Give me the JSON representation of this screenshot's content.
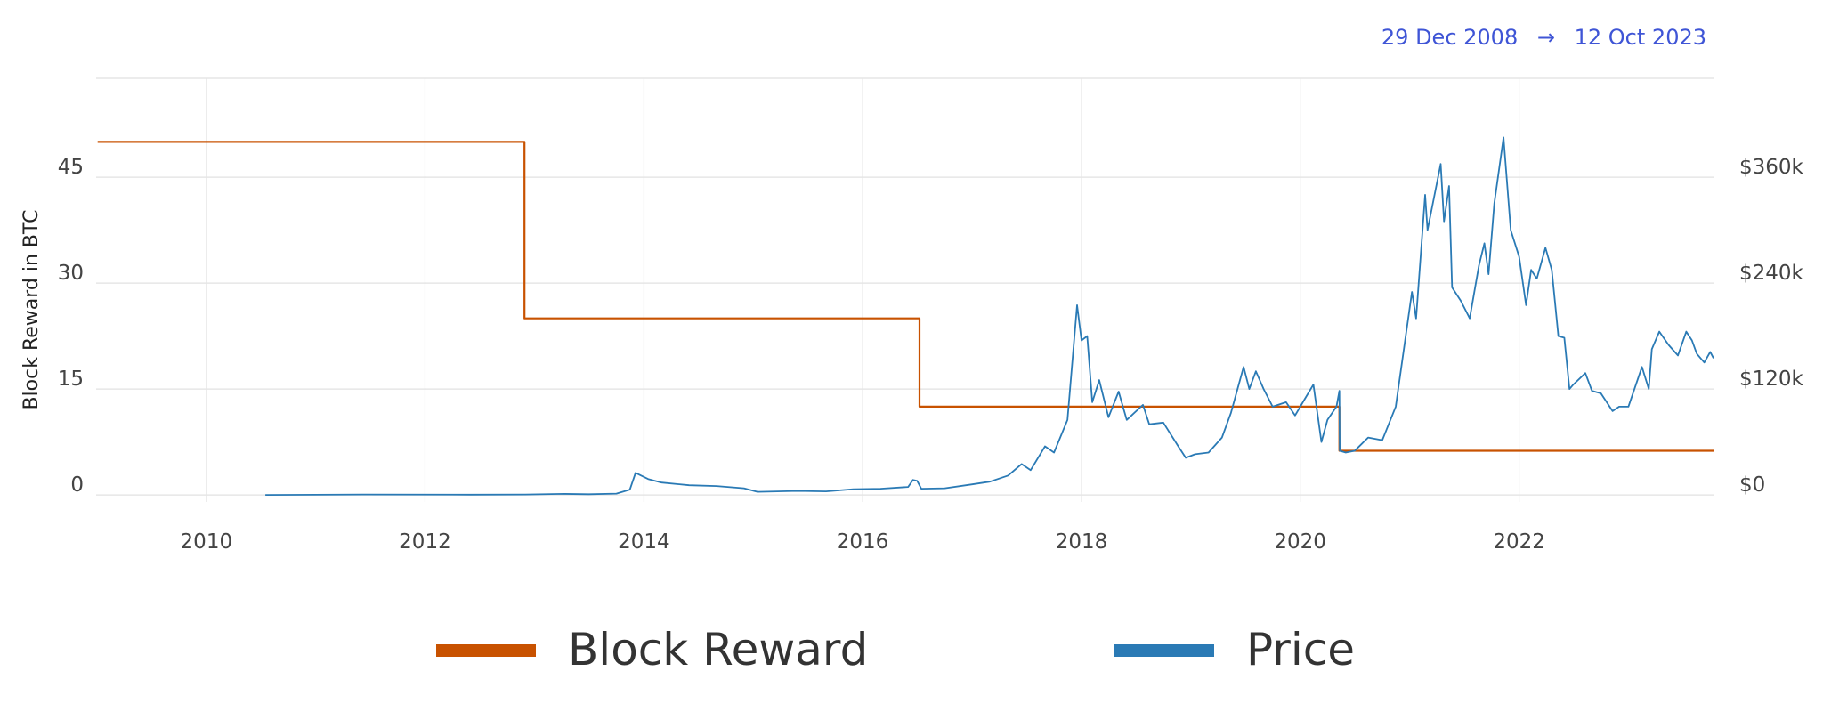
{
  "date_range": {
    "start": "29 Dec 2008",
    "arrow": "→",
    "end": "12 Oct 2023"
  },
  "colors": {
    "block_reward": "#c85200",
    "price": "#2a7ab5",
    "grid": "#e6e6e6",
    "range_text": "#3f55d6"
  },
  "chart_data": {
    "type": "line",
    "xlabel": "",
    "ylabel": "Block Reward in BTC",
    "y2label": "",
    "xlim": [
      "2008-12-29",
      "2023-10-12"
    ],
    "ylim": [
      -1,
      59
    ],
    "y2lim": [
      -8000,
      472000
    ],
    "x_ticks": [
      "2010",
      "2012",
      "2014",
      "2016",
      "2018",
      "2020",
      "2022"
    ],
    "y_ticks": [
      "0",
      "15",
      "30",
      "45"
    ],
    "y2_ticks": [
      "$0",
      "$120k",
      "$240k",
      "$360k"
    ],
    "y_tick_values": [
      0,
      15,
      30,
      45
    ],
    "y2_tick_values": [
      0,
      120000,
      240000,
      360000
    ],
    "grid": true,
    "legend_position": "bottom",
    "series": [
      {
        "name": "Block Reward",
        "axis": "left",
        "step": true,
        "points": [
          [
            "2009-01-03",
            50
          ],
          [
            "2012-11-28",
            50
          ],
          [
            "2012-11-28",
            25
          ],
          [
            "2016-07-09",
            25
          ],
          [
            "2016-07-09",
            12.5
          ],
          [
            "2020-05-11",
            12.5
          ],
          [
            "2020-05-11",
            6.25
          ],
          [
            "2023-10-12",
            6.25
          ]
        ]
      },
      {
        "name": "Price",
        "axis": "right",
        "step": false,
        "points": [
          [
            "2010-07-17",
            0
          ],
          [
            "2011-06-08",
            500
          ],
          [
            "2012-06-01",
            300
          ],
          [
            "2012-12-01",
            500
          ],
          [
            "2013-04-10",
            1200
          ],
          [
            "2013-07-01",
            800
          ],
          [
            "2013-10-01",
            1500
          ],
          [
            "2013-11-15",
            6000
          ],
          [
            "2013-12-04",
            25000
          ],
          [
            "2014-01-15",
            18000
          ],
          [
            "2014-03-01",
            14000
          ],
          [
            "2014-06-01",
            11000
          ],
          [
            "2014-09-01",
            10000
          ],
          [
            "2014-12-01",
            7500
          ],
          [
            "2015-01-15",
            3500
          ],
          [
            "2015-06-01",
            4500
          ],
          [
            "2015-09-01",
            4000
          ],
          [
            "2015-12-01",
            6500
          ],
          [
            "2016-03-01",
            7000
          ],
          [
            "2016-06-01",
            9000
          ],
          [
            "2016-06-17",
            17000
          ],
          [
            "2016-07-01",
            16000
          ],
          [
            "2016-07-15",
            7000
          ],
          [
            "2016-10-01",
            7500
          ],
          [
            "2017-01-01",
            12000
          ],
          [
            "2017-03-01",
            15000
          ],
          [
            "2017-05-01",
            22000
          ],
          [
            "2017-06-15",
            35000
          ],
          [
            "2017-07-15",
            28000
          ],
          [
            "2017-09-01",
            55000
          ],
          [
            "2017-10-01",
            48000
          ],
          [
            "2017-11-15",
            85000
          ],
          [
            "2017-12-17",
            215000
          ],
          [
            "2018-01-01",
            175000
          ],
          [
            "2018-01-20",
            180000
          ],
          [
            "2018-02-06",
            105000
          ],
          [
            "2018-03-01",
            130000
          ],
          [
            "2018-04-01",
            88000
          ],
          [
            "2018-05-05",
            117000
          ],
          [
            "2018-06-01",
            85000
          ],
          [
            "2018-07-25",
            102000
          ],
          [
            "2018-08-15",
            80000
          ],
          [
            "2018-10-01",
            82000
          ],
          [
            "2018-11-20",
            55000
          ],
          [
            "2018-12-15",
            42000
          ],
          [
            "2019-01-15",
            46000
          ],
          [
            "2019-03-01",
            48000
          ],
          [
            "2019-04-15",
            65000
          ],
          [
            "2019-05-15",
            93000
          ],
          [
            "2019-06-26",
            145000
          ],
          [
            "2019-07-15",
            120000
          ],
          [
            "2019-08-06",
            140000
          ],
          [
            "2019-09-01",
            120000
          ],
          [
            "2019-10-01",
            100000
          ],
          [
            "2019-11-15",
            105000
          ],
          [
            "2019-12-15",
            90000
          ],
          [
            "2020-01-15",
            108000
          ],
          [
            "2020-02-14",
            125000
          ],
          [
            "2020-03-12",
            60000
          ],
          [
            "2020-04-01",
            85000
          ],
          [
            "2020-05-01",
            100000
          ],
          [
            "2020-05-11",
            118000
          ],
          [
            "2020-05-12",
            50000
          ],
          [
            "2020-06-01",
            48000
          ],
          [
            "2020-07-01",
            50000
          ],
          [
            "2020-08-15",
            65000
          ],
          [
            "2020-10-01",
            62000
          ],
          [
            "2020-11-15",
            100000
          ],
          [
            "2021-01-08",
            230000
          ],
          [
            "2021-01-22",
            200000
          ],
          [
            "2021-02-21",
            340000
          ],
          [
            "2021-03-01",
            300000
          ],
          [
            "2021-04-14",
            375000
          ],
          [
            "2021-04-25",
            310000
          ],
          [
            "2021-05-12",
            350000
          ],
          [
            "2021-05-22",
            235000
          ],
          [
            "2021-06-20",
            220000
          ],
          [
            "2021-07-20",
            200000
          ],
          [
            "2021-08-20",
            260000
          ],
          [
            "2021-09-07",
            285000
          ],
          [
            "2021-09-21",
            250000
          ],
          [
            "2021-10-10",
            330000
          ],
          [
            "2021-11-10",
            405000
          ],
          [
            "2021-12-04",
            300000
          ],
          [
            "2022-01-01",
            270000
          ],
          [
            "2022-01-24",
            215000
          ],
          [
            "2022-02-10",
            255000
          ],
          [
            "2022-03-01",
            245000
          ],
          [
            "2022-03-30",
            280000
          ],
          [
            "2022-04-20",
            255000
          ],
          [
            "2022-05-12",
            180000
          ],
          [
            "2022-06-01",
            178000
          ],
          [
            "2022-06-18",
            120000
          ],
          [
            "2022-07-01",
            125000
          ],
          [
            "2022-08-10",
            138000
          ],
          [
            "2022-09-01",
            118000
          ],
          [
            "2022-10-01",
            115000
          ],
          [
            "2022-11-09",
            95000
          ],
          [
            "2022-12-01",
            100000
          ],
          [
            "2023-01-01",
            100000
          ],
          [
            "2023-02-15",
            145000
          ],
          [
            "2023-03-10",
            120000
          ],
          [
            "2023-03-20",
            165000
          ],
          [
            "2023-04-14",
            185000
          ],
          [
            "2023-05-15",
            170000
          ],
          [
            "2023-06-15",
            158000
          ],
          [
            "2023-07-13",
            185000
          ],
          [
            "2023-08-01",
            175000
          ],
          [
            "2023-08-17",
            160000
          ],
          [
            "2023-09-11",
            150000
          ],
          [
            "2023-10-01",
            162000
          ],
          [
            "2023-10-12",
            155000
          ]
        ]
      }
    ]
  }
}
